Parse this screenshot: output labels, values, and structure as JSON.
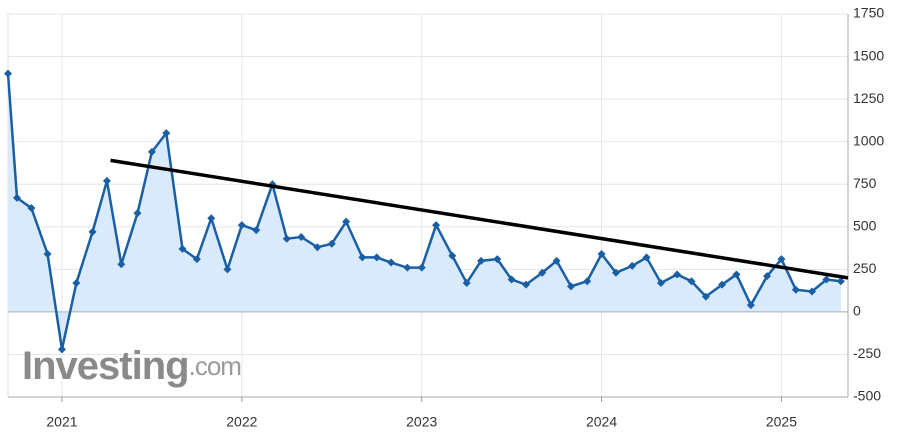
{
  "chart_data": {
    "type": "line",
    "x": [
      2020.7,
      2020.75,
      2020.83,
      2020.92,
      2021.0,
      2021.08,
      2021.17,
      2021.25,
      2021.33,
      2021.42,
      2021.5,
      2021.58,
      2021.67,
      2021.75,
      2021.83,
      2021.92,
      2022.0,
      2022.08,
      2022.17,
      2022.25,
      2022.33,
      2022.42,
      2022.5,
      2022.58,
      2022.67,
      2022.75,
      2022.83,
      2022.92,
      2023.0,
      2023.08,
      2023.17,
      2023.25,
      2023.33,
      2023.42,
      2023.5,
      2023.58,
      2023.67,
      2023.75,
      2023.83,
      2023.92,
      2024.0,
      2024.08,
      2024.17,
      2024.25,
      2024.33,
      2024.42,
      2024.5,
      2024.58,
      2024.67,
      2024.75,
      2024.83,
      2024.92,
      2025.0,
      2025.08,
      2025.17,
      2025.25,
      2025.33
    ],
    "series": [
      {
        "color": "#1a5fa3",
        "values": [
          1400,
          670,
          610,
          340,
          -220,
          170,
          470,
          770,
          280,
          580,
          940,
          1050,
          370,
          310,
          550,
          250,
          510,
          480,
          750,
          430,
          440,
          380,
          400,
          530,
          320,
          320,
          290,
          260,
          260,
          510,
          330,
          170,
          300,
          310,
          190,
          160,
          230,
          300,
          150,
          180,
          340,
          230,
          270,
          320,
          170,
          220,
          180,
          90,
          160,
          220,
          40,
          210,
          310,
          130,
          120,
          190,
          180
        ]
      }
    ],
    "trendline": {
      "x": [
        2021.27,
        2025.37
      ],
      "values": [
        890,
        200
      ],
      "color": "#000000"
    },
    "xlim": [
      2020.7,
      2025.37
    ],
    "xticks": [
      2021,
      2022,
      2023,
      2024,
      2025
    ],
    "ylim": [
      -500,
      1750
    ],
    "yticks": [
      -500,
      -250,
      0,
      250,
      500,
      750,
      1000,
      1250,
      1500,
      1750
    ],
    "grid": true,
    "area_color": "#d9eafc",
    "watermark": {
      "brand": "Investing",
      "suffix": ".com"
    }
  }
}
